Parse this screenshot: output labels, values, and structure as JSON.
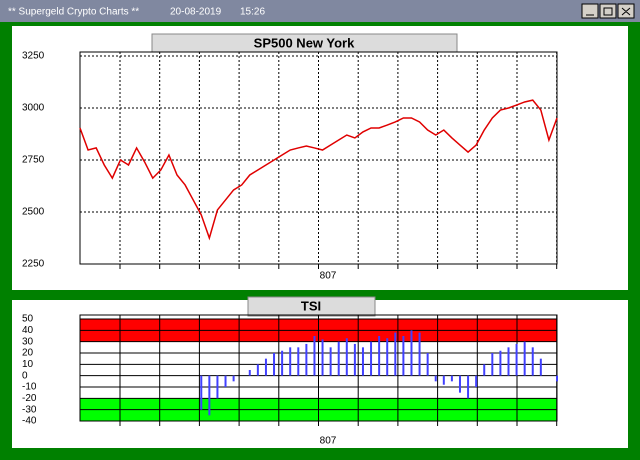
{
  "window": {
    "title": "** Supergeld Crypto Charts **",
    "date": "20-08-2019",
    "time": "15:26"
  },
  "chart_data": [
    {
      "type": "line",
      "title": "SP500 New York",
      "xlabel": "807",
      "x": [
        1,
        2,
        3,
        4,
        5,
        6,
        7,
        8,
        9,
        10,
        11,
        12,
        13,
        14,
        15,
        16,
        17,
        18,
        19,
        20,
        21,
        22,
        23,
        24,
        25,
        26,
        27,
        28,
        29,
        30,
        31,
        32,
        33,
        34,
        35,
        36,
        37,
        38,
        39,
        40,
        41,
        42,
        43,
        44,
        45,
        46,
        47,
        48,
        49,
        50,
        51,
        52,
        53,
        54,
        55,
        56,
        57,
        58,
        59,
        60
      ],
      "xlim": [
        1,
        60
      ],
      "series": [
        {
          "color": "#e00000",
          "values": [
            2904,
            2798,
            2808,
            2726,
            2663,
            2750,
            2726,
            2808,
            2740,
            2663,
            2702,
            2774,
            2678,
            2630,
            2558,
            2486,
            2375,
            2510,
            2558,
            2606,
            2630,
            2678,
            2702,
            2726,
            2750,
            2774,
            2798,
            2808,
            2817,
            2808,
            2798,
            2822,
            2846,
            2870,
            2856,
            2885,
            2904,
            2904,
            2918,
            2933,
            2952,
            2952,
            2933,
            2894,
            2870,
            2894,
            2856,
            2822,
            2788,
            2822,
            2894,
            2952,
            2990,
            3000,
            3014,
            3029,
            3038,
            2990,
            2846,
            2952
          ]
        }
      ],
      "ylim": [
        2250,
        3250
      ],
      "yticks": [
        2250,
        2500,
        2750,
        3000,
        3250
      ],
      "grid": true
    },
    {
      "type": "bar",
      "title": "TSI",
      "xlabel": "807",
      "x": [
        1,
        2,
        3,
        4,
        5,
        6,
        7,
        8,
        9,
        10,
        11,
        12,
        13,
        14,
        15,
        16,
        17,
        18,
        19,
        20,
        21,
        22,
        23,
        24,
        25,
        26,
        27,
        28,
        29,
        30,
        31,
        32,
        33,
        34,
        35,
        36,
        37,
        38,
        39,
        40,
        41,
        42,
        43,
        44,
        45,
        46,
        47,
        48,
        49,
        50,
        51,
        52,
        53,
        54,
        55,
        56,
        57,
        58,
        59,
        60
      ],
      "xlim": [
        1,
        60
      ],
      "series": [
        {
          "color": "#4040ff",
          "values": [
            null,
            null,
            null,
            null,
            null,
            null,
            null,
            null,
            null,
            null,
            null,
            null,
            null,
            null,
            null,
            -30,
            -35,
            -20,
            -10,
            -5,
            0,
            5,
            10,
            15,
            20,
            22,
            25,
            25,
            28,
            35,
            32,
            25,
            30,
            33,
            28,
            25,
            30,
            35,
            33,
            38,
            35,
            40,
            38,
            20,
            -5,
            -8,
            -5,
            -15,
            -20,
            -10,
            10,
            20,
            22,
            25,
            28,
            30,
            25,
            15,
            0,
            -5
          ]
        }
      ],
      "bands": [
        {
          "from": 30,
          "to": 50,
          "color": "#ff0000"
        },
        {
          "from": -40,
          "to": -20,
          "color": "#00ff00"
        }
      ],
      "ylim": [
        -40,
        50
      ],
      "yticks": [
        -40,
        -30,
        -20,
        -10,
        0,
        10,
        20,
        30,
        40,
        50
      ],
      "grid": true
    }
  ]
}
